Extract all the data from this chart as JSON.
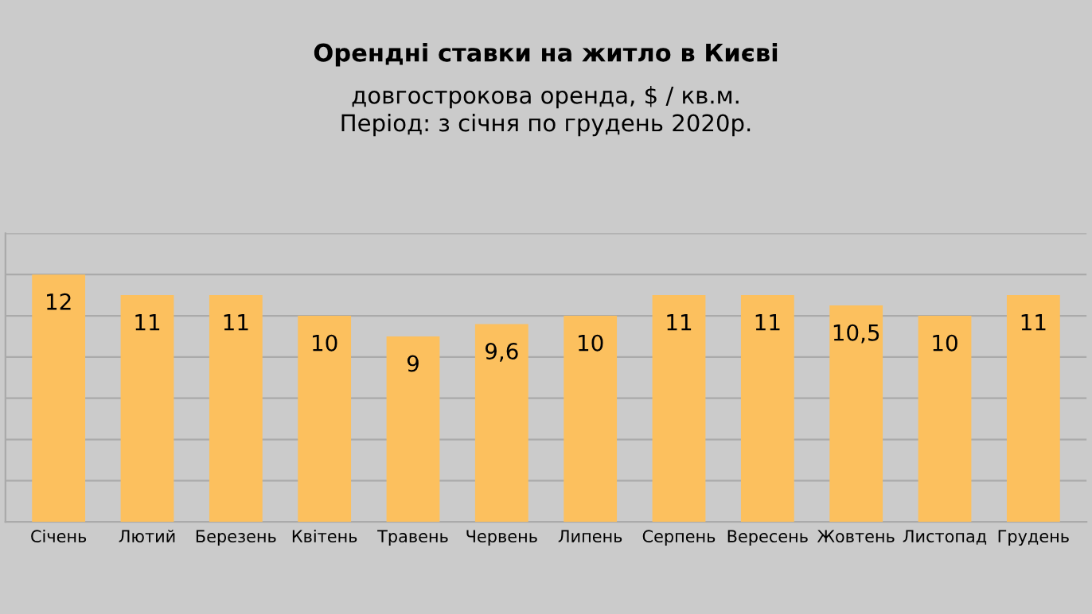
{
  "chart_data": {
    "type": "bar",
    "title": "Орендні ставки на житло в Києві",
    "subtitle": "довгострокова оренда, $ / кв.м.\nПеріод: з січня по грудень 2020р.",
    "categories": [
      "Січень",
      "Лютий",
      "Березень",
      "Квітень",
      "Травень",
      "Червень",
      "Липень",
      "Серпень",
      "Вересень",
      "Жовтень",
      "Листопад",
      "Грудень"
    ],
    "values": [
      12,
      11,
      11,
      10,
      9,
      9.6,
      10,
      11,
      11,
      10.5,
      10,
      11
    ],
    "value_labels": [
      "12",
      "11",
      "11",
      "10",
      "9",
      "9,6",
      "10",
      "11",
      "11",
      "10,5",
      "10",
      "11"
    ],
    "color": "#fcc05e",
    "ylim": [
      0,
      14
    ],
    "yticks": [
      {
        "value": 0,
        "label": null
      },
      {
        "value": 2,
        "label": null
      },
      {
        "value": 4,
        "label": null
      },
      {
        "value": 6,
        "label": null
      },
      {
        "value": 8,
        "label": null
      },
      {
        "value": 10,
        "label": null
      },
      {
        "value": 12,
        "label": null
      },
      {
        "value": 14,
        "label": null
      }
    ],
    "grid": "y",
    "tick_labels": "x"
  }
}
